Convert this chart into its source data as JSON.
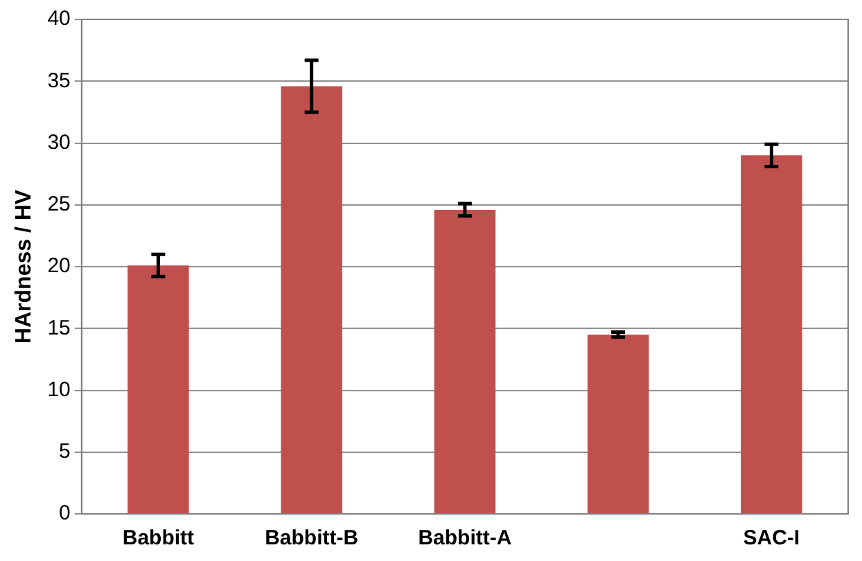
{
  "chart_data": {
    "type": "bar",
    "ylabel": "HArdness / HV",
    "categories": [
      "Babbitt",
      "Babbitt-B",
      "Babbitt-A",
      null,
      "SAC-I"
    ],
    "values": [
      20.1,
      34.6,
      24.6,
      14.5,
      29.0
    ],
    "errors": [
      0.9,
      2.1,
      0.5,
      0.2,
      0.9
    ],
    "color": "#c0504d",
    "ylim": [
      0,
      40
    ],
    "yticks": [
      0,
      5,
      10,
      15,
      20,
      25,
      30,
      35,
      40
    ],
    "grid": "y",
    "legend": false
  }
}
